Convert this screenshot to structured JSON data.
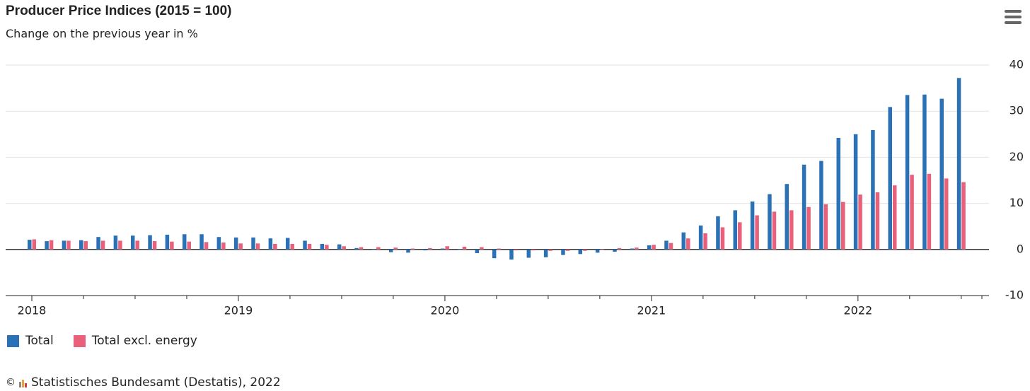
{
  "chart_data": {
    "type": "bar",
    "title": "Producer Price Indices (2015 = 100)",
    "subtitle": "Change on the previous year in %",
    "source": "Statistisches Bundesamt (Destatis), 2022",
    "categories": [
      "2018",
      null,
      null,
      null,
      null,
      null,
      null,
      null,
      null,
      null,
      null,
      null,
      "2019",
      null,
      null,
      null,
      null,
      null,
      null,
      null,
      null,
      null,
      null,
      null,
      "2020",
      null,
      null,
      null,
      null,
      null,
      null,
      null,
      null,
      null,
      null,
      null,
      "2021",
      null,
      null,
      null,
      null,
      null,
      null,
      null,
      null,
      null,
      null,
      null,
      "2022",
      null,
      null,
      null,
      null,
      null,
      null
    ],
    "series": [
      {
        "name": "Total",
        "color": "#2a72b5",
        "values": [
          2.1,
          1.8,
          1.9,
          2.0,
          2.7,
          3.0,
          3.0,
          3.1,
          3.2,
          3.3,
          3.3,
          2.7,
          2.6,
          2.6,
          2.4,
          2.5,
          1.9,
          1.2,
          1.1,
          0.3,
          -0.1,
          -0.6,
          -0.7,
          -0.2,
          0.2,
          -0.1,
          -0.8,
          -1.9,
          -2.2,
          -1.8,
          -1.7,
          -1.2,
          -1.0,
          -0.7,
          -0.5,
          0.2,
          0.9,
          1.9,
          3.7,
          5.2,
          7.2,
          8.5,
          10.4,
          12.0,
          14.2,
          18.4,
          19.2,
          24.2,
          25.0,
          25.9,
          30.9,
          33.5,
          33.6,
          32.7,
          37.2
        ]
      },
      {
        "name": "Total excl. energy",
        "color": "#e8607a",
        "values": [
          2.2,
          2.0,
          1.9,
          1.8,
          1.9,
          1.9,
          1.9,
          1.8,
          1.7,
          1.7,
          1.6,
          1.5,
          1.3,
          1.3,
          1.2,
          1.2,
          1.2,
          1.0,
          0.7,
          0.5,
          0.5,
          0.4,
          0.2,
          0.3,
          0.7,
          0.6,
          0.5,
          0.2,
          -0.2,
          -0.2,
          -0.3,
          -0.3,
          -0.3,
          -0.1,
          0.3,
          0.4,
          1.0,
          1.4,
          2.4,
          3.5,
          4.8,
          5.9,
          7.4,
          8.2,
          8.5,
          9.2,
          9.8,
          10.3,
          11.9,
          12.4,
          13.9,
          16.2,
          16.4,
          15.4,
          14.6
        ]
      }
    ],
    "ylim": [
      -10,
      40
    ],
    "yticks": [
      -10,
      0,
      10,
      20,
      30,
      40
    ],
    "grid": true
  }
}
